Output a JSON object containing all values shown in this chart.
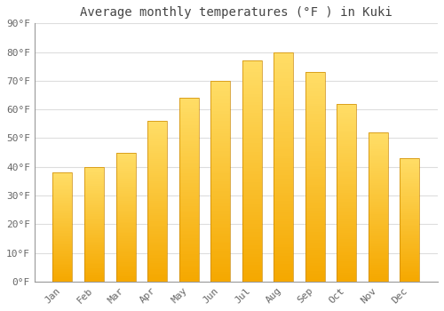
{
  "title": "Average monthly temperatures (°F ) in Kuki",
  "months": [
    "Jan",
    "Feb",
    "Mar",
    "Apr",
    "May",
    "Jun",
    "Jul",
    "Aug",
    "Sep",
    "Oct",
    "Nov",
    "Dec"
  ],
  "values": [
    38,
    40,
    45,
    56,
    64,
    70,
    77,
    80,
    73,
    62,
    52,
    43
  ],
  "bar_color_bottom": "#F5A800",
  "bar_color_top": "#FFD966",
  "bar_edge_color": "#CC8800",
  "background_color": "#FFFFFF",
  "grid_color": "#DDDDDD",
  "ylim": [
    0,
    90
  ],
  "yticks": [
    0,
    10,
    20,
    30,
    40,
    50,
    60,
    70,
    80,
    90
  ],
  "ytick_labels": [
    "0°F",
    "10°F",
    "20°F",
    "30°F",
    "40°F",
    "50°F",
    "60°F",
    "70°F",
    "80°F",
    "90°F"
  ],
  "tick_fontsize": 8,
  "title_fontsize": 10,
  "xlabel_rotation": 45,
  "figsize": [
    5.0,
    3.5
  ],
  "dpi": 100
}
